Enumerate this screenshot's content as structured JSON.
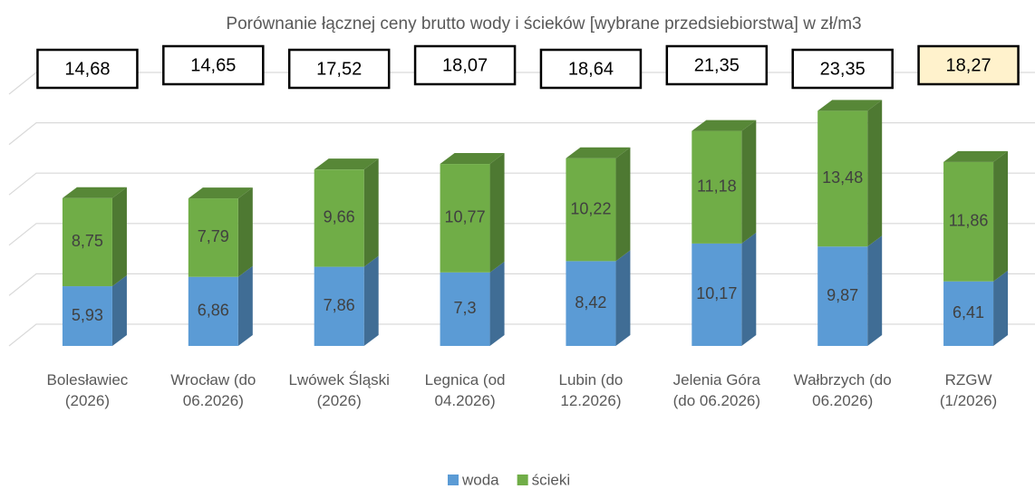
{
  "chart_data": {
    "type": "bar3d_stacked",
    "title": "Porównanie łącznej ceny brutto wody i ścieków [wybrane przedsiebiorstwa] w zł/m3",
    "categories": [
      "Bolesławiec (2026)",
      "Wrocław (do 06.2026)",
      "Lwówek Śląski (2026)",
      "Legnica (od 04.2026)",
      "Lubin (do 12.2026)",
      "Jelenia Góra (do 06.2026)",
      "Wałbrzych (do 06.2026)",
      "RZGW (1/2026)"
    ],
    "series": [
      {
        "name": "woda",
        "color": "#5b9bd5",
        "values": [
          5.93,
          6.86,
          7.86,
          7.3,
          8.42,
          10.17,
          9.87,
          6.41
        ],
        "value_labels": [
          "5,93",
          "6,86",
          "7,86",
          "7,3",
          "8,42",
          "10,17",
          "9,87",
          "6,41"
        ]
      },
      {
        "name": "ścieki",
        "color": "#70ad47",
        "values": [
          8.75,
          7.79,
          9.66,
          10.77,
          10.22,
          11.18,
          13.48,
          11.86
        ],
        "value_labels": [
          "8,75",
          "7,79",
          "9,66",
          "10,77",
          "10,22",
          "11,18",
          "13,48",
          "11,86"
        ]
      }
    ],
    "totals": [
      14.68,
      14.65,
      17.52,
      18.07,
      18.64,
      21.35,
      23.35,
      18.27
    ],
    "total_labels": [
      "14,68",
      "14,65",
      "17,52",
      "18,07",
      "18,64",
      "21,35",
      "23,35",
      "18,27"
    ],
    "highlight_color": "#fff2cc",
    "ylim": [
      0,
      25
    ],
    "yticks": [
      0,
      5,
      10,
      15,
      20,
      25
    ],
    "grid": true,
    "legend": "bottom"
  }
}
